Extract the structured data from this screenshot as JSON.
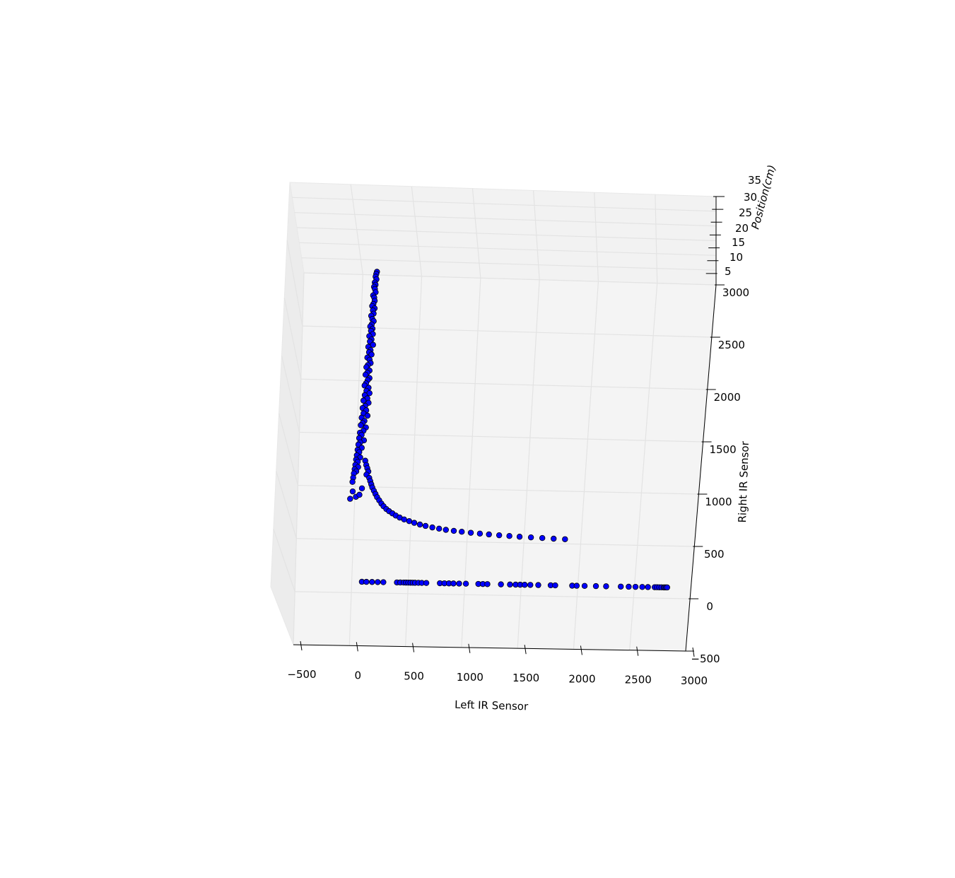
{
  "chart_data": {
    "type": "scatter",
    "projection": "3d",
    "title": "",
    "xlabel": "Left IR Sensor",
    "ylabel": "Right IR Sensor",
    "zlabel": "Position(cm)",
    "xlim": [
      -500,
      3000
    ],
    "ylim": [
      -500,
      3000
    ],
    "zlim": [
      0,
      35
    ],
    "xticks": [
      "−500",
      "0",
      "500",
      "1000",
      "1500",
      "2000",
      "2500",
      "3000"
    ],
    "yticks": [
      "−500",
      "0",
      "500",
      "1000",
      "1500",
      "2000",
      "2500",
      "3000"
    ],
    "zticks": [
      "5",
      "10",
      "15",
      "20",
      "25",
      "30",
      "35"
    ],
    "grid": true,
    "marker_color": "#0000ff",
    "marker_edge": "#000000",
    "series": [
      {
        "values": [
          [
            120,
            3000,
            30
          ],
          [
            115,
            2980,
            30
          ],
          [
            110,
            2955,
            29
          ],
          [
            118,
            2930,
            29
          ],
          [
            105,
            2900,
            29
          ],
          [
            112,
            2880,
            28
          ],
          [
            100,
            2860,
            28
          ],
          [
            108,
            2840,
            28
          ],
          [
            115,
            2810,
            27
          ],
          [
            95,
            2780,
            27
          ],
          [
            105,
            2760,
            27
          ],
          [
            110,
            2730,
            26
          ],
          [
            100,
            2700,
            26
          ],
          [
            90,
            2680,
            26
          ],
          [
            112,
            2660,
            25
          ],
          [
            98,
            2640,
            25
          ],
          [
            105,
            2610,
            25
          ],
          [
            85,
            2590,
            24
          ],
          [
            95,
            2560,
            24
          ],
          [
            108,
            2540,
            24
          ],
          [
            92,
            2510,
            23
          ],
          [
            80,
            2490,
            23
          ],
          [
            100,
            2470,
            23
          ],
          [
            88,
            2450,
            22
          ],
          [
            105,
            2420,
            22
          ],
          [
            75,
            2400,
            22
          ],
          [
            95,
            2370,
            21
          ],
          [
            82,
            2350,
            21
          ],
          [
            110,
            2320,
            21
          ],
          [
            70,
            2300,
            20
          ],
          [
            90,
            2270,
            20
          ],
          [
            78,
            2250,
            20
          ],
          [
            100,
            2230,
            19
          ],
          [
            65,
            2200,
            19
          ],
          [
            85,
            2180,
            19
          ],
          [
            95,
            2150,
            18
          ],
          [
            72,
            2130,
            18
          ],
          [
            60,
            2110,
            18
          ],
          [
            88,
            2080,
            17
          ],
          [
            70,
            2060,
            17
          ],
          [
            55,
            2040,
            17
          ],
          [
            90,
            2010,
            16
          ],
          [
            75,
            1990,
            16
          ],
          [
            62,
            1960,
            16
          ],
          [
            50,
            1940,
            15
          ],
          [
            85,
            1920,
            15
          ],
          [
            68,
            1890,
            15
          ],
          [
            95,
            1870,
            14
          ],
          [
            55,
            1850,
            14
          ],
          [
            78,
            1820,
            14
          ],
          [
            45,
            1800,
            13
          ],
          [
            90,
            1780,
            13
          ],
          [
            62,
            1750,
            13
          ],
          [
            40,
            1730,
            12
          ],
          [
            72,
            1710,
            12
          ],
          [
            50,
            1680,
            12
          ],
          [
            85,
            1660,
            11
          ],
          [
            35,
            1640,
            11
          ],
          [
            60,
            1610,
            11
          ],
          [
            45,
            1590,
            10
          ],
          [
            30,
            1570,
            10
          ],
          [
            75,
            1550,
            10
          ],
          [
            55,
            1520,
            9
          ],
          [
            25,
            1500,
            9
          ],
          [
            40,
            1480,
            9
          ],
          [
            20,
            1450,
            8
          ],
          [
            62,
            1430,
            8
          ],
          [
            30,
            1410,
            8
          ],
          [
            15,
            1390,
            7
          ],
          [
            45,
            1360,
            7
          ],
          [
            10,
            1340,
            7
          ],
          [
            25,
            1320,
            6
          ],
          [
            5,
            1290,
            6
          ],
          [
            35,
            1270,
            6
          ],
          [
            0,
            1250,
            5
          ],
          [
            15,
            1230,
            5
          ],
          [
            -5,
            1200,
            5
          ],
          [
            20,
            1180,
            5
          ],
          [
            -10,
            1160,
            4
          ],
          [
            5,
            1140,
            4
          ],
          [
            -15,
            1120,
            4
          ],
          [
            -20,
            1080,
            4
          ],
          [
            -25,
            1040,
            4
          ],
          [
            80,
            1240,
            6
          ],
          [
            90,
            1200,
            6
          ],
          [
            100,
            1170,
            6
          ],
          [
            110,
            1140,
            5
          ],
          [
            95,
            1110,
            5
          ],
          [
            120,
            1080,
            5
          ],
          [
            130,
            1050,
            5
          ],
          [
            140,
            1020,
            5
          ],
          [
            150,
            990,
            5
          ],
          [
            165,
            960,
            5
          ],
          [
            180,
            930,
            5
          ],
          [
            195,
            900,
            5
          ],
          [
            215,
            870,
            5
          ],
          [
            235,
            840,
            5
          ],
          [
            255,
            815,
            5
          ],
          [
            280,
            790,
            5
          ],
          [
            305,
            770,
            5
          ],
          [
            335,
            750,
            5
          ],
          [
            365,
            730,
            5
          ],
          [
            400,
            712,
            5
          ],
          [
            440,
            695,
            5
          ],
          [
            485,
            680,
            5
          ],
          [
            530,
            665,
            5
          ],
          [
            580,
            650,
            5
          ],
          [
            630,
            638,
            5
          ],
          [
            690,
            625,
            5
          ],
          [
            750,
            615,
            5
          ],
          [
            810,
            605,
            5
          ],
          [
            880,
            597,
            5
          ],
          [
            950,
            590,
            5
          ],
          [
            1030,
            582,
            5
          ],
          [
            1110,
            576,
            5
          ],
          [
            1190,
            570,
            5
          ],
          [
            1280,
            564,
            5
          ],
          [
            1370,
            559,
            5
          ],
          [
            1460,
            554,
            5
          ],
          [
            1560,
            550,
            5
          ],
          [
            1660,
            546,
            5
          ],
          [
            1760,
            542,
            5
          ],
          [
            1860,
            539,
            5
          ],
          [
            -20,
            950,
            4
          ],
          [
            10,
            900,
            4
          ],
          [
            -40,
            880,
            4
          ],
          [
            60,
            980,
            5
          ],
          [
            40,
            920,
            4
          ],
          [
            90,
            100,
            4
          ],
          [
            130,
            100,
            4
          ],
          [
            180,
            100,
            4
          ],
          [
            230,
            100,
            4
          ],
          [
            280,
            100,
            4
          ],
          [
            400,
            100,
            4
          ],
          [
            430,
            100,
            4
          ],
          [
            460,
            100,
            4
          ],
          [
            480,
            100,
            4
          ],
          [
            500,
            100,
            4
          ],
          [
            520,
            100,
            4
          ],
          [
            540,
            100,
            4
          ],
          [
            560,
            100,
            4
          ],
          [
            590,
            100,
            4
          ],
          [
            620,
            100,
            4
          ],
          [
            660,
            100,
            4
          ],
          [
            780,
            100,
            4
          ],
          [
            820,
            100,
            4
          ],
          [
            860,
            100,
            4
          ],
          [
            900,
            100,
            4
          ],
          [
            950,
            100,
            4
          ],
          [
            1010,
            100,
            4
          ],
          [
            1120,
            100,
            4
          ],
          [
            1160,
            100,
            4
          ],
          [
            1200,
            100,
            4
          ],
          [
            1320,
            100,
            4
          ],
          [
            1400,
            100,
            4
          ],
          [
            1450,
            100,
            4
          ],
          [
            1490,
            100,
            4
          ],
          [
            1530,
            100,
            4
          ],
          [
            1580,
            100,
            4
          ],
          [
            1650,
            100,
            4
          ],
          [
            1760,
            100,
            4
          ],
          [
            1800,
            100,
            4
          ],
          [
            1950,
            100,
            4
          ],
          [
            1990,
            100,
            4
          ],
          [
            2060,
            100,
            4
          ],
          [
            2160,
            100,
            4
          ],
          [
            2250,
            100,
            4
          ],
          [
            2380,
            100,
            4
          ],
          [
            2450,
            100,
            4
          ],
          [
            2510,
            100,
            4
          ],
          [
            2570,
            100,
            4
          ],
          [
            2620,
            100,
            4
          ],
          [
            2680,
            100,
            4
          ],
          [
            2700,
            100,
            4
          ],
          [
            2720,
            100,
            4
          ],
          [
            2740,
            100,
            4
          ],
          [
            2760,
            100,
            4
          ],
          [
            2770,
            100,
            4
          ],
          [
            2780,
            100,
            4
          ],
          [
            2790,
            100,
            4
          ]
        ]
      }
    ]
  }
}
